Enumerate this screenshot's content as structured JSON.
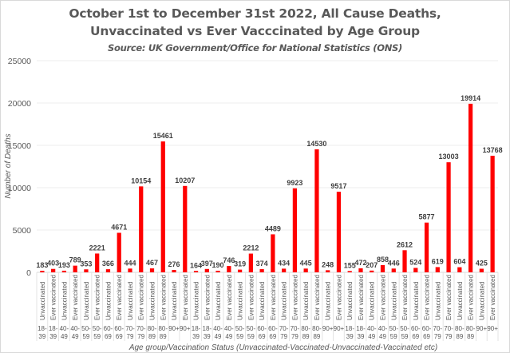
{
  "chart_data": {
    "type": "bar",
    "title": "October 1st to December 31st 2022, All Cause Deaths,",
    "title_line2": "Unvaccinated vs Ever Vacccinated by Age Group",
    "subtitle": "Source: UK Government/Office for National Statistics (ONS)",
    "xlabel": "Age group/Vaccination Status (Unvaccinated-Vaccinated-Unvaccinated-Vaccinated etc)",
    "ylabel": "Number of Deaths",
    "ylim": [
      0,
      25000
    ],
    "yticks": [
      "0",
      "5000",
      "10000",
      "15000",
      "20000",
      "25000"
    ],
    "grid": true,
    "legend": "none",
    "bar_color": "#ff0000",
    "categories": [
      {
        "status": "Unvaccinated",
        "age": "18-39"
      },
      {
        "status": "Ever vaccinated",
        "age": "18-39"
      },
      {
        "status": "Unvaccinated",
        "age": "40-49"
      },
      {
        "status": "Ever vaccinated",
        "age": "40-49"
      },
      {
        "status": "Unvaccinated",
        "age": "50-59"
      },
      {
        "status": "Ever vaccinated",
        "age": "50-59"
      },
      {
        "status": "Unvaccinated",
        "age": "60-69"
      },
      {
        "status": "Ever vaccinated",
        "age": "60-69"
      },
      {
        "status": "Unvaccinated",
        "age": "70-79"
      },
      {
        "status": "Ever vaccinated",
        "age": "70-79"
      },
      {
        "status": "Unvaccinated",
        "age": "80-89"
      },
      {
        "status": "Ever vaccinated",
        "age": "80-89"
      },
      {
        "status": "Unvaccinated",
        "age": "90+"
      },
      {
        "status": "Ever vaccinated",
        "age": "90+"
      },
      {
        "status": "Unvaccinated",
        "age": "18-39"
      },
      {
        "status": "Ever vaccinated",
        "age": "18-39"
      },
      {
        "status": "Unvaccinated",
        "age": "40-49"
      },
      {
        "status": "Ever vaccinated",
        "age": "40-49"
      },
      {
        "status": "Unvaccinated",
        "age": "50-59"
      },
      {
        "status": "Ever vaccinated",
        "age": "50-59"
      },
      {
        "status": "Unvaccinated",
        "age": "60-69"
      },
      {
        "status": "Ever vaccinated",
        "age": "60-69"
      },
      {
        "status": "Unvaccinated",
        "age": "70-79"
      },
      {
        "status": "Ever vaccinated",
        "age": "70-79"
      },
      {
        "status": "Unvaccinated",
        "age": "80-89"
      },
      {
        "status": "Ever vaccinated",
        "age": "80-89"
      },
      {
        "status": "Unvaccinated",
        "age": "90+"
      },
      {
        "status": "Ever vaccinated",
        "age": "90+"
      },
      {
        "status": "Unvaccinated",
        "age": "18-39"
      },
      {
        "status": "Ever vaccinated",
        "age": "18-39"
      },
      {
        "status": "Unvaccinated",
        "age": "40-49"
      },
      {
        "status": "Ever vaccinated",
        "age": "40-49"
      },
      {
        "status": "Unvaccinated",
        "age": "50-59"
      },
      {
        "status": "Ever vaccinated",
        "age": "50-59"
      },
      {
        "status": "Unvaccinated",
        "age": "60-69"
      },
      {
        "status": "Ever vaccinated",
        "age": "60-69"
      },
      {
        "status": "Unvaccinated",
        "age": "70-79"
      },
      {
        "status": "Ever vaccinated",
        "age": "70-79"
      },
      {
        "status": "Unvaccinated",
        "age": "80-89"
      },
      {
        "status": "Ever vaccinated",
        "age": "80-89"
      },
      {
        "status": "Unvaccinated",
        "age": "90+"
      },
      {
        "status": "Ever vaccinated",
        "age": "90+"
      }
    ],
    "values": [
      183,
      403,
      193,
      789,
      353,
      2221,
      366,
      4671,
      444,
      10154,
      467,
      15461,
      276,
      10207,
      164,
      397,
      190,
      746,
      319,
      2212,
      374,
      4489,
      434,
      9923,
      445,
      14530,
      248,
      9517,
      155,
      472,
      207,
      858,
      446,
      2612,
      524,
      5877,
      619,
      13003,
      604,
      19914,
      425,
      13768
    ]
  }
}
